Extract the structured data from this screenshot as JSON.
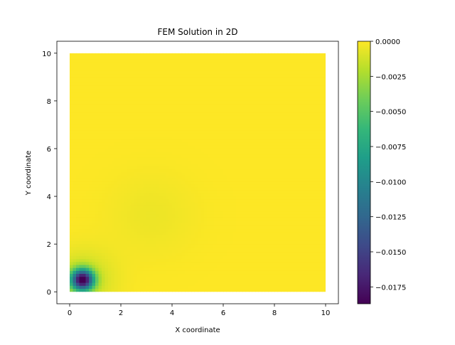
{
  "chart_data": {
    "type": "heatmap",
    "title": "FEM Solution in 2D",
    "xlabel": "X coordinate",
    "ylabel": "Y coordinate",
    "xlim": [
      -0.5,
      10.5
    ],
    "ylim": [
      -0.5,
      10.5
    ],
    "domain": {
      "x": [
        0,
        10
      ],
      "y": [
        0,
        10
      ]
    },
    "x_ticks": [
      0,
      2,
      4,
      6,
      8,
      10
    ],
    "x_tick_labels": [
      "0",
      "2",
      "4",
      "6",
      "8",
      "10"
    ],
    "y_ticks": [
      0,
      2,
      4,
      6,
      8,
      10
    ],
    "y_tick_labels": [
      "0",
      "2",
      "4",
      "6",
      "8",
      "10"
    ],
    "colormap": "viridis",
    "value_range": [
      -0.0187,
      0.0
    ],
    "colorbar_ticks": [
      0.0,
      -0.0025,
      -0.005,
      -0.0075,
      -0.01,
      -0.0125,
      -0.015,
      -0.0175
    ],
    "colorbar_tick_labels": [
      "0.0000",
      "−0.0025",
      "−0.0050",
      "−0.0075",
      "−0.0100",
      "−0.0125",
      "−0.0150",
      "−0.0175"
    ],
    "minimum_location": {
      "x": 0.5,
      "y": 0.5,
      "value": -0.0187
    },
    "secondary_feature_center": {
      "x": 3.2,
      "y": 3.2
    },
    "grid": false,
    "legend": "colorbar-right"
  }
}
